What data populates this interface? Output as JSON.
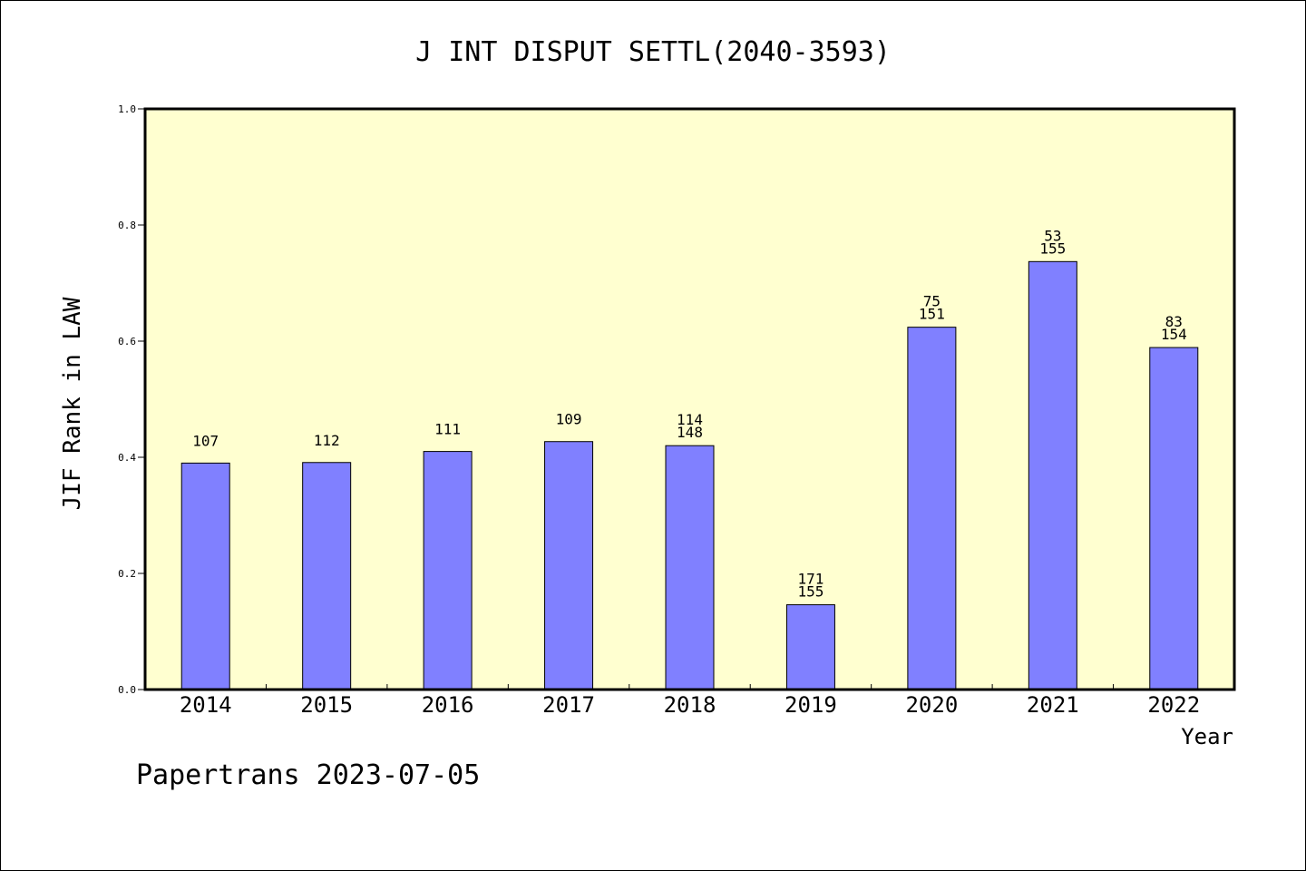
{
  "chart_data": {
    "type": "bar",
    "title": "J INT DISPUT SETTL(2040-3593)",
    "xlabel": "Year",
    "ylabel": "JIF Rank in LAW",
    "ylim": [
      0,
      1.0
    ],
    "yticks": [
      "0.0",
      "0.2",
      "0.4",
      "0.6",
      "0.8",
      "1.0"
    ],
    "ytick_values": [
      0,
      0.2,
      0.4,
      0.6,
      0.8,
      1.0
    ],
    "grid": false,
    "categories": [
      "2014",
      "2015",
      "2016",
      "2017",
      "2018",
      "2019",
      "2020",
      "2021",
      "2022"
    ],
    "values": [
      0.39,
      0.391,
      0.41,
      0.427,
      0.42,
      0.146,
      0.624,
      0.737,
      0.589
    ],
    "labels": [
      [
        "107"
      ],
      [
        "112"
      ],
      [
        "111"
      ],
      [
        "109"
      ],
      [
        "114",
        "148"
      ],
      [
        "171",
        "155"
      ],
      [
        "75",
        "151"
      ],
      [
        "53",
        "155"
      ],
      [
        "83",
        "154"
      ]
    ],
    "colors": {
      "bar": "#8080ff",
      "plot_bg": "#ffffd0",
      "axis": "#000000"
    }
  },
  "footer": {
    "text": "Papertrans 2023-07-05"
  }
}
